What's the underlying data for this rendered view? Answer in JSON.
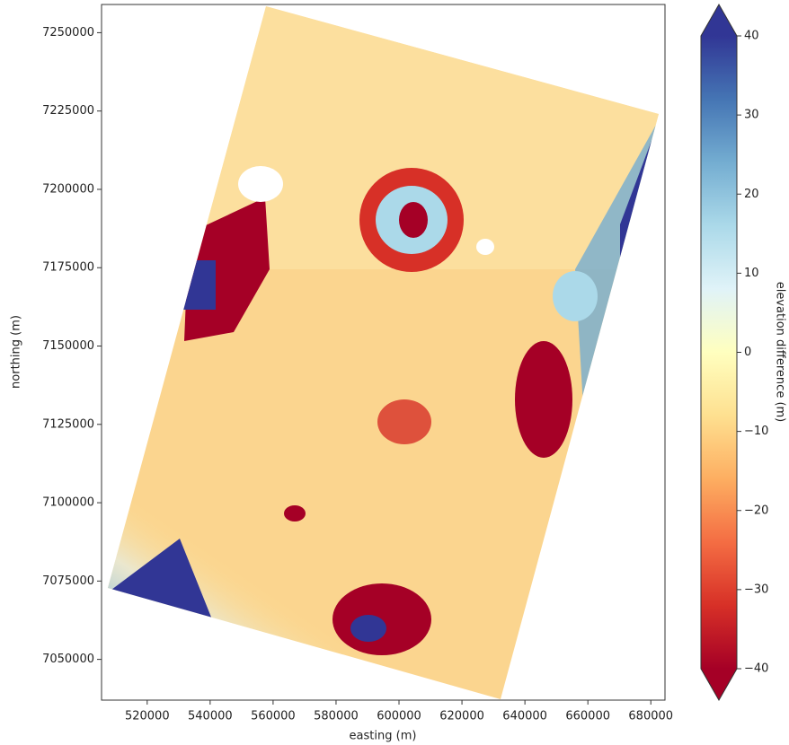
{
  "chart_data": {
    "type": "image",
    "xlabel": "easting (m)",
    "ylabel": "northing (m)",
    "xlim": [
      505500,
      684500
    ],
    "ylim": [
      7037000,
      7259000
    ],
    "xticks": [
      520000,
      540000,
      560000,
      580000,
      600000,
      620000,
      640000,
      660000,
      680000
    ],
    "yticks": [
      7050000,
      7075000,
      7100000,
      7125000,
      7150000,
      7175000,
      7200000,
      7225000,
      7250000
    ],
    "colorbar": {
      "label": "elevation difference (m)",
      "lim": [
        -40,
        40
      ],
      "ticks": [
        {
          "value": -40,
          "label": "−40"
        },
        {
          "value": -30,
          "label": "−30"
        },
        {
          "value": -20,
          "label": "−20"
        },
        {
          "value": -10,
          "label": "−10"
        },
        0,
        10,
        20,
        30,
        40
      ],
      "colors": [
        "#a50026",
        "#d73027",
        "#f46d43",
        "#fdae61",
        "#fee090",
        "#ffffbf",
        "#e0f3f8",
        "#abd9e9",
        "#74add1",
        "#4575b4",
        "#313695"
      ],
      "extend": "both"
    }
  }
}
